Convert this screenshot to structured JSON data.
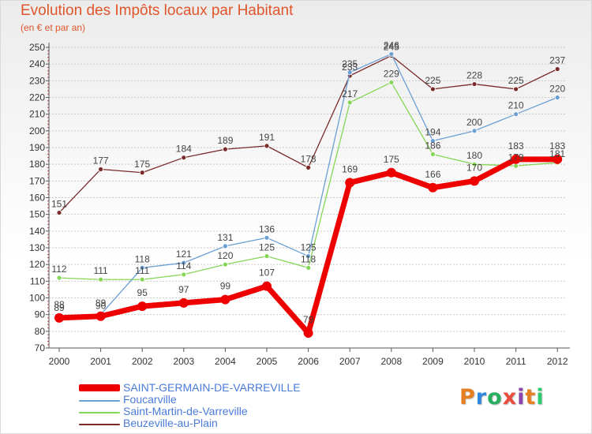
{
  "header": {
    "title": "Evolution des Impôts locaux par Habitant",
    "subtitle": "(en € et par an)"
  },
  "colors": {
    "title": "#e0552a",
    "axis": "#555555",
    "grid": "#c8c8c8",
    "legend_text": "#4b7bd8"
  },
  "logo": {
    "text": "Proxiti",
    "letter_colors": [
      "#e67e22",
      "#2e86de",
      "#27ae60",
      "#e74c3c",
      "#8e44ad",
      "#e67e22",
      "#2ecc71"
    ]
  },
  "chart_data": {
    "type": "line",
    "title": "Evolution des Impôts locaux par Habitant",
    "subtitle": "(en € et par an)",
    "xlabel": "",
    "ylabel": "",
    "ylim": [
      70,
      250
    ],
    "yticks": [
      70,
      80,
      90,
      100,
      110,
      120,
      130,
      140,
      150,
      160,
      170,
      180,
      190,
      200,
      210,
      220,
      230,
      240,
      250
    ],
    "grid": true,
    "legend_position": "bottom-left",
    "categories": [
      "2000",
      "2001",
      "2002",
      "2003",
      "2004",
      "2005",
      "2006",
      "2007",
      "2008",
      "2009",
      "2010",
      "2011",
      "2012"
    ],
    "series": [
      {
        "name": "SAINT-GERMAIN-DE-VARREVILLE",
        "color": "#ee0000",
        "values": [
          88,
          89,
          95,
          97,
          99,
          107,
          79,
          169,
          175,
          166,
          170,
          183,
          183
        ]
      },
      {
        "name": "Foucarville",
        "color": "#6a9fd4",
        "values": [
          89,
          90,
          118,
          121,
          131,
          136,
          125,
          235,
          246,
          194,
          200,
          210,
          220
        ]
      },
      {
        "name": "Saint-Martin-de-Varreville",
        "color": "#86d656",
        "values": [
          112,
          111,
          111,
          114,
          120,
          125,
          118,
          217,
          229,
          186,
          180,
          179,
          181
        ]
      },
      {
        "name": "Beuzeville-au-Plain",
        "color": "#7a2a2a",
        "values": [
          151,
          177,
          175,
          184,
          189,
          191,
          178,
          233,
          245,
          225,
          228,
          225,
          237
        ]
      }
    ]
  }
}
